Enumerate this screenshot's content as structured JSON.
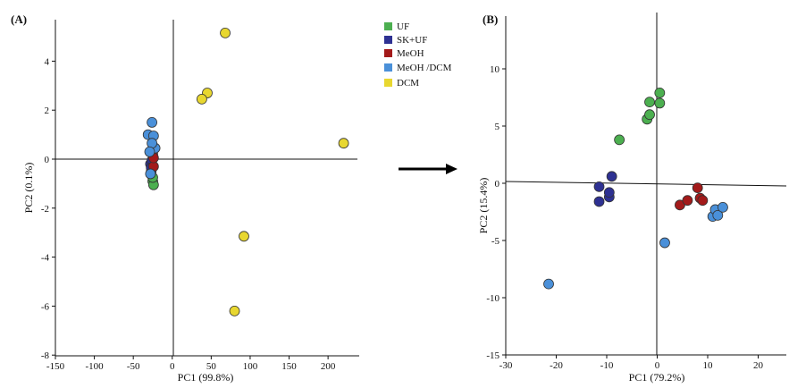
{
  "chart_data": [
    {
      "type": "scatter",
      "panel_label": "(A)",
      "xlabel": "PC1 (99.8%)",
      "ylabel": "PC2 (0.1%)",
      "xlim": [
        -150,
        240
      ],
      "ylim": [
        -8,
        5.8
      ],
      "xticks": [
        -150,
        -100,
        -50,
        0,
        50,
        100,
        150,
        200
      ],
      "yticks": [
        -8,
        -6,
        -4,
        -2,
        0,
        2,
        4
      ],
      "series": [
        {
          "name": "UF",
          "color": "#4caf50",
          "points": [
            [
              -25,
              -0.9
            ],
            [
              -24,
              -1.05
            ],
            [
              -25,
              -0.75
            ]
          ]
        },
        {
          "name": "SK+UF",
          "color": "#2e3192",
          "points": [
            [
              -28,
              -0.2
            ],
            [
              -27,
              -0.5
            ],
            [
              -26,
              -0.05
            ],
            [
              -27,
              -0.35
            ]
          ]
        },
        {
          "name": "MeOH",
          "color": "#a31a1a",
          "points": [
            [
              -24,
              -0.3
            ],
            [
              -25,
              0.2
            ],
            [
              -24,
              0.05
            ]
          ]
        },
        {
          "name": "MeOH /DCM",
          "color": "#4a90d9",
          "points": [
            [
              -26,
              1.5
            ],
            [
              -31,
              1.0
            ],
            [
              -24,
              0.95
            ],
            [
              -22,
              0.45
            ],
            [
              -26,
              0.65
            ],
            [
              -28,
              -0.6
            ],
            [
              -29,
              0.3
            ]
          ]
        },
        {
          "name": "DCM",
          "color": "#e8d730",
          "points": [
            [
              68,
              5.15
            ],
            [
              45,
              2.7
            ],
            [
              38,
              2.45
            ],
            [
              220,
              0.65
            ],
            [
              92,
              -3.15
            ],
            [
              80,
              -6.2
            ]
          ]
        }
      ]
    },
    {
      "type": "scatter",
      "panel_label": "(B)",
      "xlabel": "PC1 (79.2%)",
      "ylabel": "PC2 (15.4%)",
      "xlim": [
        -30,
        26
      ],
      "ylim": [
        -15,
        14.5
      ],
      "xticks": [
        -30,
        -20,
        -10,
        0,
        10,
        20
      ],
      "yticks": [
        -15,
        -10,
        -5,
        0,
        5,
        10
      ],
      "series": [
        {
          "name": "UF",
          "color": "#4caf50",
          "points": [
            [
              -7.5,
              3.8
            ],
            [
              -2.0,
              5.6
            ],
            [
              -1.5,
              6.0
            ],
            [
              -1.5,
              7.1
            ],
            [
              0.5,
              7.0
            ],
            [
              0.5,
              7.9
            ]
          ]
        },
        {
          "name": "SK+UF",
          "color": "#2e3192",
          "points": [
            [
              -11.5,
              -0.3
            ],
            [
              -11.5,
              -1.6
            ],
            [
              -9.5,
              -1.2
            ],
            [
              -9.5,
              -0.8
            ],
            [
              -9.0,
              0.6
            ]
          ]
        },
        {
          "name": "MeOH",
          "color": "#a31a1a",
          "points": [
            [
              4.5,
              -1.9
            ],
            [
              6.0,
              -1.5
            ],
            [
              8.0,
              -0.4
            ],
            [
              8.5,
              -1.3
            ],
            [
              9.0,
              -1.5
            ]
          ]
        },
        {
          "name": "MeOH /DCM",
          "color": "#4a90d9",
          "points": [
            [
              -21.5,
              -8.8
            ],
            [
              1.5,
              -5.2
            ],
            [
              11.0,
              -2.9
            ],
            [
              11.5,
              -2.3
            ],
            [
              12.0,
              -2.8
            ],
            [
              13.0,
              -2.1
            ]
          ]
        },
        {
          "name": "DCM",
          "color": "#e8d730",
          "points": []
        }
      ]
    }
  ],
  "legend": [
    {
      "label": "UF",
      "color": "#4caf50"
    },
    {
      "label": "SK+UF",
      "color": "#2e3192"
    },
    {
      "label": "MeOH",
      "color": "#a31a1a"
    },
    {
      "label": "MeOH /DCM",
      "color": "#4a90d9"
    },
    {
      "label": "DCM",
      "color": "#e8d730"
    }
  ],
  "arrow": {
    "icon": "right-arrow-icon"
  }
}
